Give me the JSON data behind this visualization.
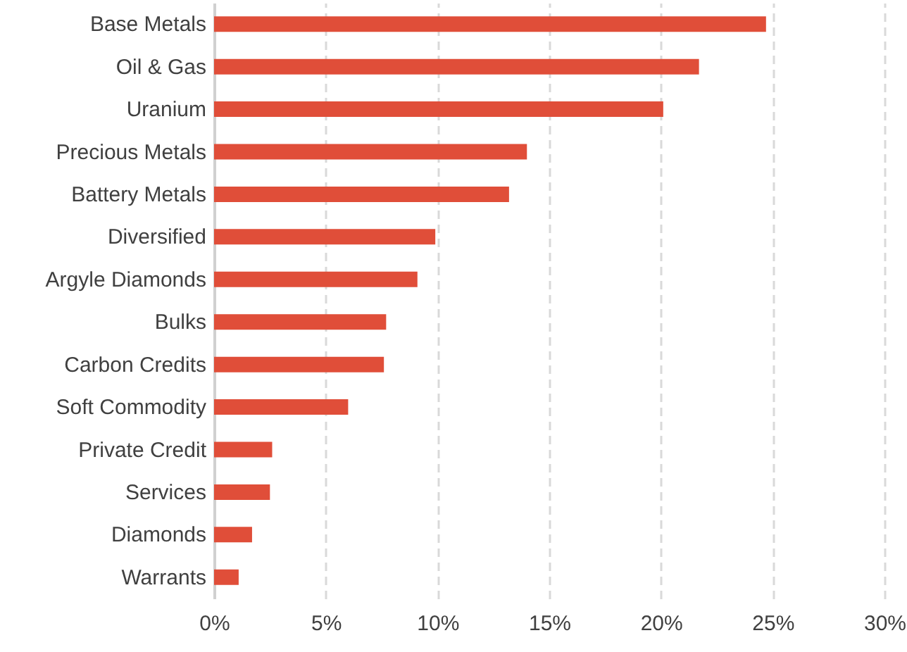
{
  "chart_data": {
    "type": "bar",
    "orientation": "horizontal",
    "categories": [
      "Base Metals",
      "Oil & Gas",
      "Uranium",
      "Precious Metals",
      "Battery Metals",
      "Diversified",
      "Argyle Diamonds",
      "Bulks",
      "Carbon Credits",
      "Soft Commodity",
      "Private Credit",
      "Services",
      "Diamonds",
      "Warrants"
    ],
    "values": [
      24.7,
      21.7,
      20.1,
      14.0,
      13.2,
      9.9,
      9.1,
      7.7,
      7.6,
      6.0,
      2.6,
      2.5,
      1.7,
      1.1
    ],
    "color": "#e04e39",
    "xlim": [
      0,
      30
    ],
    "xticks": [
      {
        "value": 0,
        "label": "0%"
      },
      {
        "value": 5,
        "label": "5%"
      },
      {
        "value": 10,
        "label": "10%"
      },
      {
        "value": 15,
        "label": "15%"
      },
      {
        "value": 20,
        "label": "20%"
      },
      {
        "value": 25,
        "label": "25%"
      },
      {
        "value": 30,
        "label": "30%"
      }
    ],
    "grid": "x"
  }
}
